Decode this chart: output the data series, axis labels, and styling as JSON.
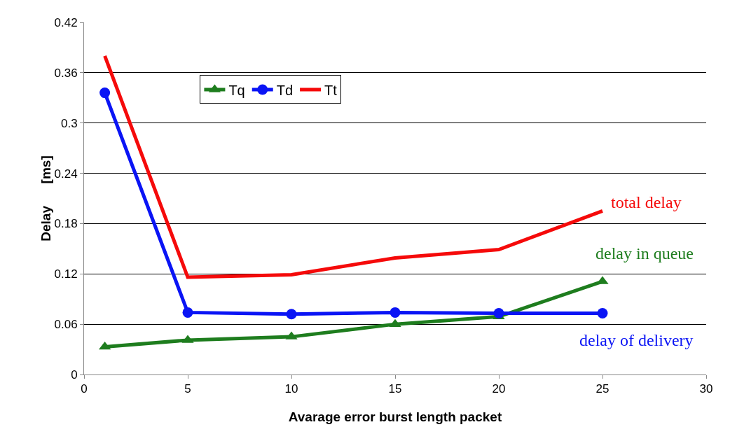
{
  "chart_data": {
    "type": "line",
    "xlabel": "Avarage error burst length packet",
    "ylabel": "Delay      [ms]",
    "x": [
      1,
      5,
      10,
      15,
      20,
      25
    ],
    "series": [
      {
        "name": "Tq",
        "color": "#1e7d1e",
        "marker": "triangle",
        "values": [
          0.033,
          0.041,
          0.045,
          0.06,
          0.069,
          0.111
        ]
      },
      {
        "name": "Td",
        "color": "#0a14f5",
        "marker": "circle",
        "values": [
          0.336,
          0.074,
          0.072,
          0.074,
          0.073,
          0.073
        ]
      },
      {
        "name": "Tt",
        "color": "#f50a0a",
        "marker": "none",
        "values": [
          0.38,
          0.116,
          0.119,
          0.139,
          0.149,
          0.195
        ]
      }
    ],
    "annotations": [
      "delay in queue",
      "delay of delivery",
      "total delay"
    ],
    "xlim": [
      0,
      30
    ],
    "xticks": [
      0,
      5,
      10,
      15,
      20,
      25,
      30
    ],
    "ylim": [
      0,
      0.42
    ],
    "yticks": [
      0,
      0.06,
      0.12,
      0.18,
      0.24,
      0.3,
      0.36,
      0.42
    ],
    "grid": "y",
    "legend": "top",
    "line_style": "solid"
  }
}
